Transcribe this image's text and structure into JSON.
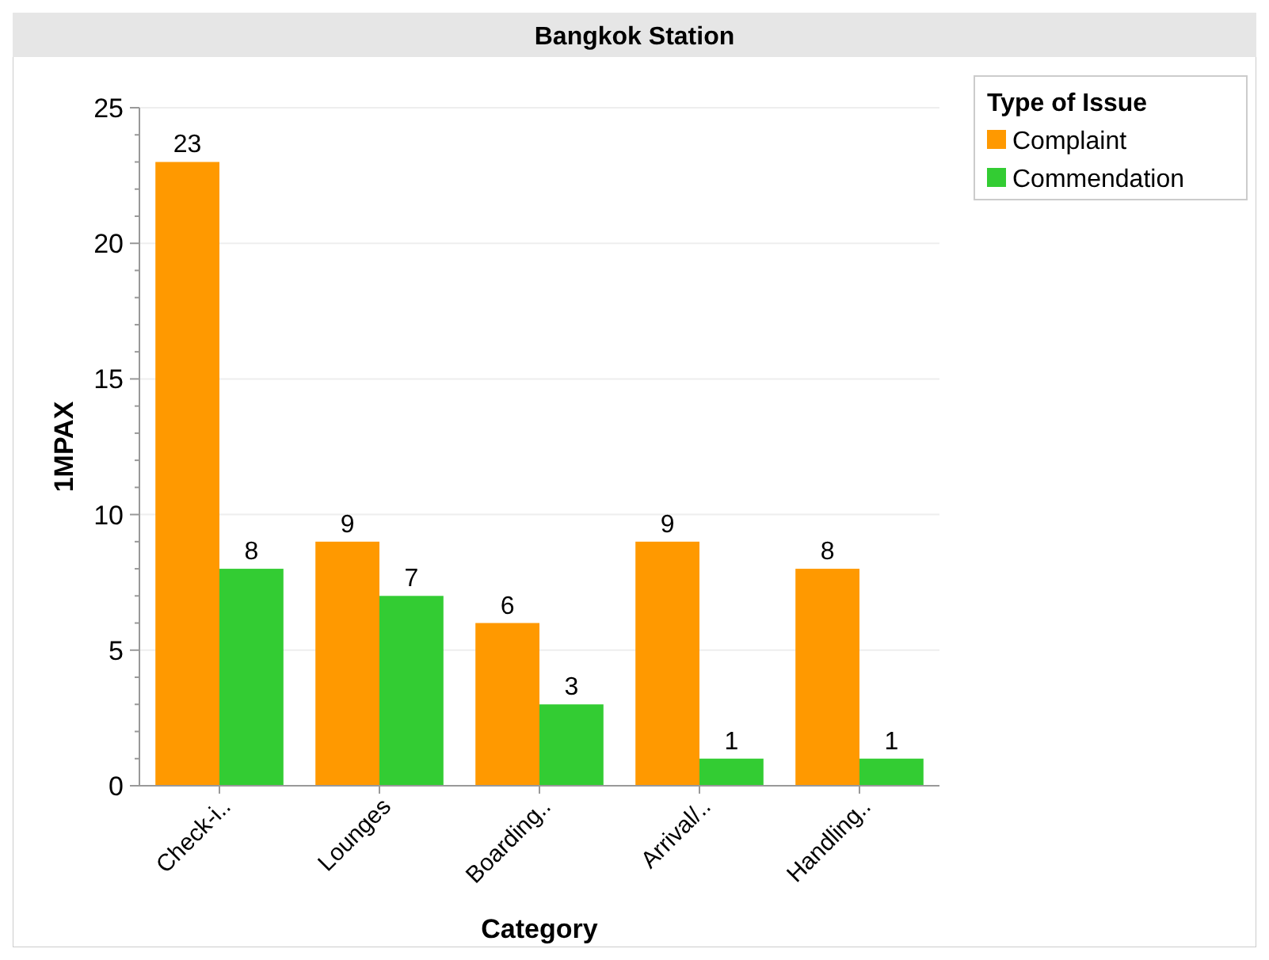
{
  "chart_data": {
    "type": "bar",
    "title": "Bangkok Station",
    "xlabel": "Category",
    "ylabel": "1MPAX",
    "legend_title": "Type of Issue",
    "categories": [
      "Check-i..",
      "Lounges",
      "Boarding..",
      "Arrival/..",
      "Handling.."
    ],
    "series": [
      {
        "name": "Complaint",
        "color": "#ff9900",
        "values": [
          23,
          9,
          6,
          9,
          8
        ]
      },
      {
        "name": "Commendation",
        "color": "#33cc33",
        "values": [
          8,
          7,
          3,
          1,
          1
        ]
      }
    ],
    "ylim": [
      0,
      25
    ],
    "yticks": [
      0,
      5,
      10,
      15,
      20,
      25
    ],
    "grid": "y",
    "data_labels": true,
    "legend": "top right"
  }
}
